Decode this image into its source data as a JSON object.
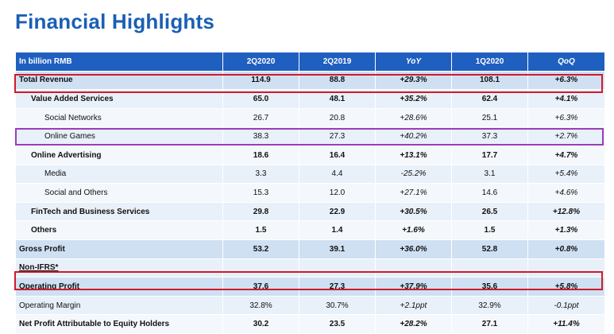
{
  "title": "Financial Highlights",
  "table": {
    "headers": [
      "In billion RMB",
      "2Q2020",
      "2Q2019",
      "YoY",
      "1Q2020",
      "QoQ"
    ],
    "rows": [
      {
        "label": "Total Revenue",
        "values": [
          "114.9",
          "88.8",
          "+29.3%",
          "108.1",
          "+6.3%"
        ]
      },
      {
        "label": "Value Added Services",
        "values": [
          "65.0",
          "48.1",
          "+35.2%",
          "62.4",
          "+4.1%"
        ]
      },
      {
        "label": "Social Networks",
        "values": [
          "26.7",
          "20.8",
          "+28.6%",
          "25.1",
          "+6.3%"
        ]
      },
      {
        "label": "Online Games",
        "values": [
          "38.3",
          "27.3",
          "+40.2%",
          "37.3",
          "+2.7%"
        ]
      },
      {
        "label": "Online Advertising",
        "values": [
          "18.6",
          "16.4",
          "+13.1%",
          "17.7",
          "+4.7%"
        ]
      },
      {
        "label": "Media",
        "values": [
          "3.3",
          "4.4",
          "-25.2%",
          "3.1",
          "+5.4%"
        ]
      },
      {
        "label": "Social and Others",
        "values": [
          "15.3",
          "12.0",
          "+27.1%",
          "14.6",
          "+4.6%"
        ]
      },
      {
        "label": "FinTech and Business Services",
        "values": [
          "29.8",
          "22.9",
          "+30.5%",
          "26.5",
          "+12.8%"
        ]
      },
      {
        "label": "Others",
        "values": [
          "1.5",
          "1.4",
          "+1.6%",
          "1.5",
          "+1.3%"
        ]
      },
      {
        "label": "Gross Profit",
        "values": [
          "53.2",
          "39.1",
          "+36.0%",
          "52.8",
          "+0.8%"
        ]
      },
      {
        "label": "Non-IFRS*",
        "values": [
          "",
          "",
          "",
          "",
          ""
        ]
      },
      {
        "label": "Operating Profit",
        "values": [
          "37.6",
          "27.3",
          "+37.9%",
          "35.6",
          "+5.8%"
        ]
      },
      {
        "label": "Operating Margin",
        "values": [
          "32.8%",
          "30.7%",
          "+2.1ppt",
          "32.9%",
          "-0.1ppt"
        ]
      },
      {
        "label": "Net Profit Attributable to Equity Holders",
        "values": [
          "30.2",
          "23.5",
          "+28.2%",
          "27.1",
          "+11.4%"
        ]
      }
    ]
  },
  "colors": {
    "title": "#1a5fb4",
    "header_bg": "#1f5fc0",
    "highlight_red": "#d11a2a",
    "highlight_purple": "#9b3db8"
  }
}
